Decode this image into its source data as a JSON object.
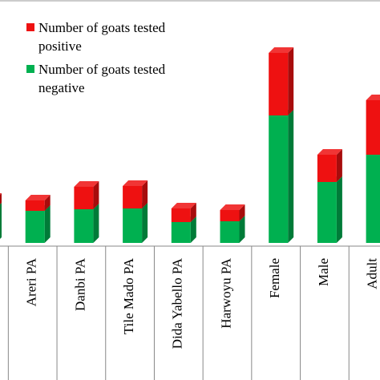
{
  "chart_data": {
    "type": "bar3d_stacked",
    "categories": [
      null,
      "Areri PA",
      "Danbi PA",
      "Tile Mado PA",
      "Dida Yabello PA",
      "Harwoyu PA",
      "Female",
      "Male",
      "Adult"
    ],
    "series": [
      {
        "name": "Number of goats tested negative",
        "color": "#00b050",
        "values": [
          43,
          40,
          42,
          43,
          26,
          27,
          159,
          76,
          110
        ]
      },
      {
        "name": "Number of goats tested positive",
        "color": "#ee1111",
        "values": [
          12,
          13,
          28,
          28,
          17,
          14,
          78,
          34,
          68
        ]
      }
    ]
  }
}
